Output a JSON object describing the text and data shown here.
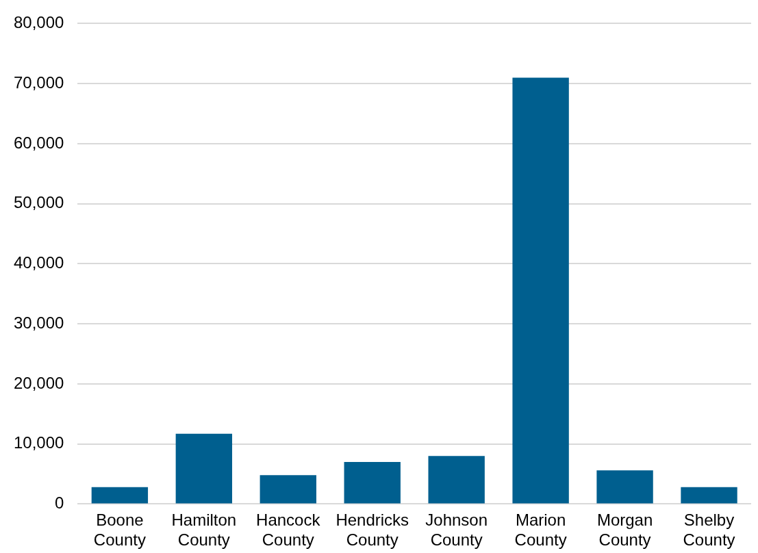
{
  "chart_data": {
    "type": "bar",
    "categories": [
      "Boone County",
      "Hamilton County",
      "Hancock County",
      "Hendricks County",
      "Johnson County",
      "Marion County",
      "Morgan County",
      "Shelby County"
    ],
    "values": [
      2800,
      11700,
      4800,
      7000,
      8000,
      71000,
      5600,
      2800
    ],
    "color": "#005f8f",
    "ylim": [
      0,
      80000
    ],
    "yticks": [
      0,
      {
        "value": 10000,
        "label": "10,000"
      },
      {
        "value": 20000,
        "label": "20,000"
      },
      {
        "value": 30000,
        "label": "30,000"
      },
      {
        "value": 40000,
        "label": "40,000"
      },
      {
        "value": 50000,
        "label": "50,000"
      },
      {
        "value": 60000,
        "label": "60,000"
      },
      {
        "value": 70000,
        "label": "70,000"
      },
      {
        "value": 80000,
        "label": "80,000"
      }
    ],
    "grid": "y",
    "legend": false
  }
}
